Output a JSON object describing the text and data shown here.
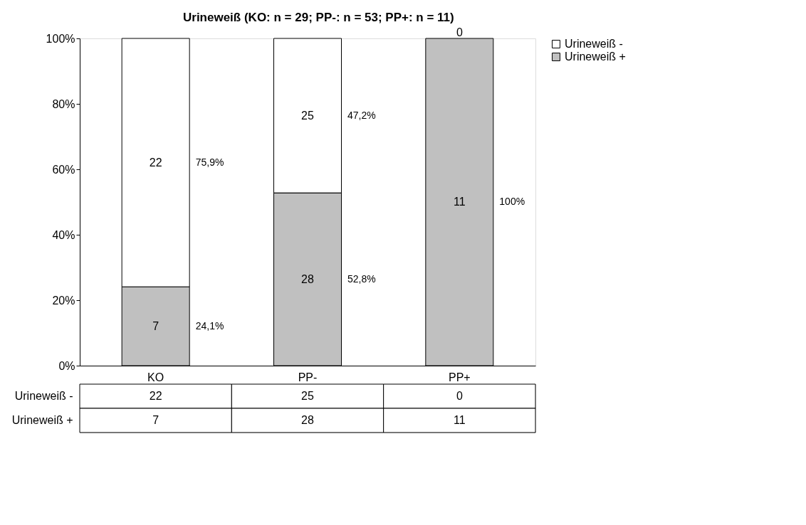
{
  "chart_data": {
    "type": "bar",
    "stacked": true,
    "title": "Urineweiß (KO: n = 29;  PP-: n = 53; PP+: n = 11)",
    "categories": [
      "KO",
      "PP-",
      "PP+"
    ],
    "series": [
      {
        "name": "Urineweiß +",
        "color": "#c0c0c0",
        "values": [
          24.1,
          52.8,
          100
        ]
      },
      {
        "name": "Urineweiß -",
        "color": "#ffffff",
        "values": [
          75.9,
          47.2,
          0
        ]
      }
    ],
    "ylim": [
      0,
      100
    ],
    "yticks": [
      {
        "value": 0,
        "label": "0%"
      },
      {
        "value": 20,
        "label": "20%"
      },
      {
        "value": 40,
        "label": "40%"
      },
      {
        "value": 60,
        "label": "60%"
      },
      {
        "value": 80,
        "label": "80%"
      },
      {
        "value": 100,
        "label": "100%"
      }
    ],
    "annotations": [
      "7",
      "28",
      "11",
      "22",
      "25",
      "0",
      "24,1%",
      "52,8%",
      "100%",
      "75,9%",
      "47,2%",
      "22",
      "25",
      "0",
      "7",
      "28",
      "11"
    ],
    "legend": "right",
    "grid": false
  }
}
